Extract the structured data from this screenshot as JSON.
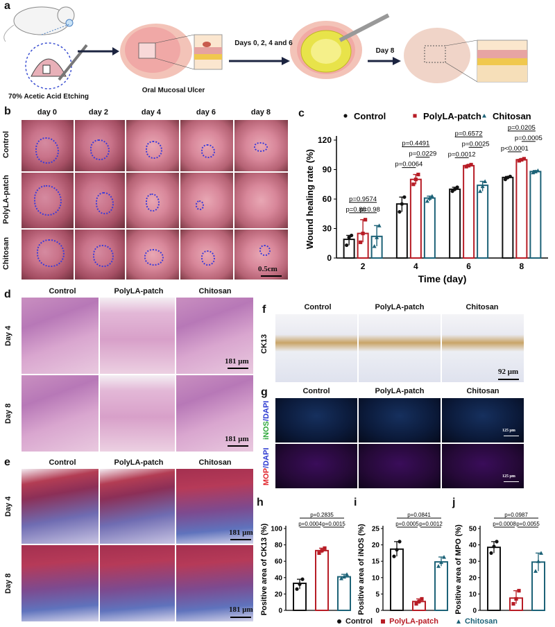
{
  "panel_labels": {
    "a": "a",
    "b": "b",
    "c": "c",
    "d": "d",
    "e": "e",
    "f": "f",
    "g": "g",
    "h": "h",
    "i": "i",
    "j": "j"
  },
  "schematic": {
    "step1": "70% Acetic Acid Etching",
    "step2": "Oral Mucosal Ulcer",
    "arrow_label1": "Days 0, 2, 4 and 6",
    "arrow_label2": "Day 8"
  },
  "photo_grid": {
    "days": [
      "day 0",
      "day 2",
      "day 4",
      "day 6",
      "day 8"
    ],
    "groups": [
      "Control",
      "PolyLA-patch",
      "Chitosan"
    ],
    "scale": "0.5cm"
  },
  "histology": {
    "groups": [
      "Control",
      "PolyLA-patch",
      "Chitosan"
    ],
    "days": [
      "Day 4",
      "Day 8"
    ],
    "scale": "181 μm"
  },
  "ck13": {
    "groups": [
      "Control",
      "PolyLA-patch",
      "Chitosan"
    ],
    "row_label": "CK13",
    "scale": "92 μm"
  },
  "fluor": {
    "groups": [
      "Control",
      "PolyLA-patch",
      "Chitosan"
    ],
    "row1_a": "iNOS",
    "row1_b": "/DAPI",
    "row2_a": "MOP",
    "row2_b": "/DAPI",
    "scale": "125 μm"
  },
  "bottom_legend": [
    "Control",
    "PolyLA-patch",
    "Chitosan"
  ],
  "colors": {
    "control": "#111111",
    "polyla": "#b71c25",
    "chitosan": "#1c6277"
  },
  "chart_data": [
    {
      "id": "c",
      "type": "bar",
      "legend": [
        "Control",
        "PolyLA-patch",
        "Chitosan"
      ],
      "categories": [
        "2",
        "4",
        "6",
        "8"
      ],
      "xlabel": "Time (day)",
      "ylabel": "Wound healing rate (%)",
      "ylim": [
        0,
        120
      ],
      "yticks": [
        0,
        30,
        60,
        90,
        120
      ],
      "series": [
        {
          "name": "Control",
          "values": [
            19,
            55,
            70,
            82
          ],
          "points": [
            [
              13,
              21,
              23
            ],
            [
              47,
              55,
              62
            ],
            [
              68,
              70,
              72
            ],
            [
              80,
              82,
              83
            ]
          ]
        },
        {
          "name": "PolyLA-patch",
          "values": [
            25,
            80,
            94,
            100
          ],
          "points": [
            [
              16,
              25,
              39
            ],
            [
              75,
              80,
              85
            ],
            [
              93,
              94,
              95
            ],
            [
              99,
              100,
              101
            ]
          ]
        },
        {
          "name": "Chitosan",
          "values": [
            22,
            61,
            74,
            88
          ],
          "points": [
            [
              12,
              21,
              33
            ],
            [
              58,
              61,
              63
            ],
            [
              68,
              73,
              78
            ],
            [
              87,
              88,
              89
            ]
          ]
        }
      ],
      "pvalues": [
        {
          "text": "p=0.88",
          "g": 0,
          "a": 0,
          "b": 1,
          "level": 0
        },
        {
          "text": "p=0.98",
          "g": 0,
          "a": 1,
          "b": 2,
          "level": 0
        },
        {
          "text": "p=0.9574",
          "g": 0,
          "a": 0,
          "b": 2,
          "level": 1
        },
        {
          "text": "p=0.0064",
          "g": 1,
          "a": 0,
          "b": 1,
          "level": 0
        },
        {
          "text": "p=0.0229",
          "g": 1,
          "a": 1,
          "b": 2,
          "level": 1
        },
        {
          "text": "p=0.4491",
          "g": 1,
          "a": 0,
          "b": 2,
          "level": 2
        },
        {
          "text": "p=0.0012",
          "g": 2,
          "a": 0,
          "b": 1,
          "level": 0
        },
        {
          "text": "p=0.0025",
          "g": 2,
          "a": 1,
          "b": 2,
          "level": 1
        },
        {
          "text": "p=0.6572",
          "g": 2,
          "a": 0,
          "b": 2,
          "level": 2
        },
        {
          "text": "p<0.0001",
          "g": 3,
          "a": 0,
          "b": 1,
          "level": 0
        },
        {
          "text": "p=0.0005",
          "g": 3,
          "a": 1,
          "b": 2,
          "level": 1
        },
        {
          "text": "p=0.0205",
          "g": 3,
          "a": 0,
          "b": 2,
          "level": 2
        }
      ]
    },
    {
      "id": "h",
      "type": "bar",
      "ylabel": "Positive area of CK13 (%)",
      "ylim": [
        0,
        100
      ],
      "yticks": [
        0,
        20,
        40,
        60,
        80,
        100
      ],
      "values": [
        33,
        73,
        41
      ],
      "points": [
        [
          26,
          32,
          38
        ],
        [
          70,
          73,
          76
        ],
        [
          39,
          41,
          44
        ]
      ],
      "pvalues": [
        {
          "text": "p=0.0004",
          "a": 0,
          "b": 1,
          "level": 0
        },
        {
          "text": "p=0.0015",
          "a": 1,
          "b": 2,
          "level": 0
        },
        {
          "text": "p=0.2835",
          "a": 0,
          "b": 2,
          "level": 1
        }
      ]
    },
    {
      "id": "i",
      "type": "bar",
      "ylabel": "Positive area of iNOS (%)",
      "ylim": [
        0,
        25
      ],
      "yticks": [
        0,
        5,
        10,
        15,
        20,
        25
      ],
      "values": [
        18.7,
        2.7,
        14.8
      ],
      "points": [
        [
          16.5,
          18.5,
          21
        ],
        [
          2,
          2.7,
          3.5
        ],
        [
          13.5,
          14.7,
          16.3
        ]
      ],
      "pvalues": [
        {
          "text": "p=0.0005",
          "a": 0,
          "b": 1,
          "level": 0
        },
        {
          "text": "p=0.0012",
          "a": 1,
          "b": 2,
          "level": 0
        },
        {
          "text": "p=0.0841",
          "a": 0,
          "b": 2,
          "level": 1
        }
      ]
    },
    {
      "id": "j",
      "type": "bar",
      "ylabel": "Positive area of MPO (%)",
      "ylim": [
        0,
        50
      ],
      "yticks": [
        0,
        10,
        20,
        30,
        40,
        50
      ],
      "values": [
        38.5,
        7.5,
        29.5
      ],
      "points": [
        [
          35,
          39,
          42
        ],
        [
          4,
          7,
          12
        ],
        [
          24,
          30,
          35
        ]
      ],
      "pvalues": [
        {
          "text": "p=0.0008",
          "a": 0,
          "b": 1,
          "level": 0
        },
        {
          "text": "p=0.0055",
          "a": 1,
          "b": 2,
          "level": 0
        },
        {
          "text": "p=0.0987",
          "a": 0,
          "b": 2,
          "level": 1
        }
      ]
    }
  ]
}
